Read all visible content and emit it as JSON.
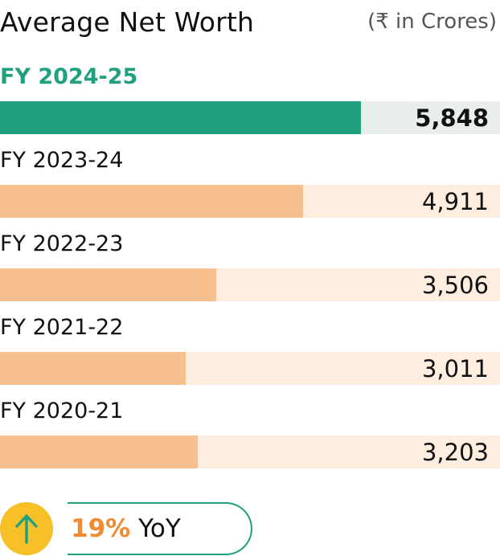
{
  "header": {
    "title": "Average Net Worth",
    "unit": "(₹ in Crores)"
  },
  "chart_data": {
    "type": "bar",
    "orientation": "horizontal",
    "title": "Average Net Worth",
    "unit": "(₹ in Crores)",
    "categories": [
      "FY 2024-25",
      "FY 2023-24",
      "FY 2022-23",
      "FY 2021-22",
      "FY 2020-21"
    ],
    "values": [
      5848,
      4911,
      3506,
      3011,
      3203
    ],
    "value_labels": [
      "5,848",
      "4,911",
      "3,506",
      "3,011",
      "3,203"
    ],
    "highlighted_category": "FY 2024-25",
    "xlim": [
      0,
      8100
    ],
    "colors": {
      "highlight_fill": "#21a07f",
      "highlight_track": "#e8eeec",
      "highlight_label": "#21a07f",
      "fill": "#f9c08f",
      "track": "#fdeee0"
    }
  },
  "yoy": {
    "percent": "19%",
    "label": "YoY",
    "icon": "arrow-up-icon",
    "colors": {
      "circle": "#f8c027",
      "arrow": "#21a07f",
      "percent": "#f08b32",
      "outline": "#21a07f"
    }
  }
}
